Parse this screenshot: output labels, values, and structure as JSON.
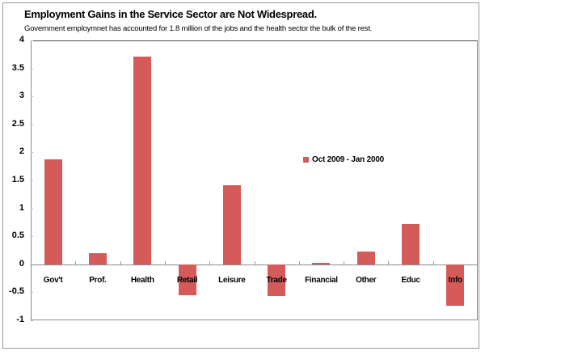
{
  "chart_data": {
    "type": "bar",
    "title": "Employment Gains in the Service Sector are Not Widespread.",
    "subtitle": "Government employmnet has accounted for 1.8 million of the jobs and the health sector the bulk of the rest.",
    "xlabel": "",
    "ylabel": "",
    "ylim": [
      -1,
      4
    ],
    "yticks": [
      "4",
      "3.5",
      "3",
      "2.5",
      "2",
      "1.5",
      "1",
      "0.5",
      "0",
      "-0.5",
      "-1"
    ],
    "categories": [
      "Gov't",
      "Prof.",
      "Health",
      "Retail",
      "Leisure",
      "Trade",
      "Financial",
      "Other",
      "Educ",
      "Info"
    ],
    "series": [
      {
        "name": "Oct 2009 - Jan 2000",
        "color": "#d55b5b",
        "values": [
          1.88,
          0.2,
          3.71,
          -0.55,
          1.41,
          -0.57,
          0.02,
          0.23,
          0.72,
          -0.74
        ]
      }
    ],
    "legend_position": "inside-right",
    "grid": false
  }
}
